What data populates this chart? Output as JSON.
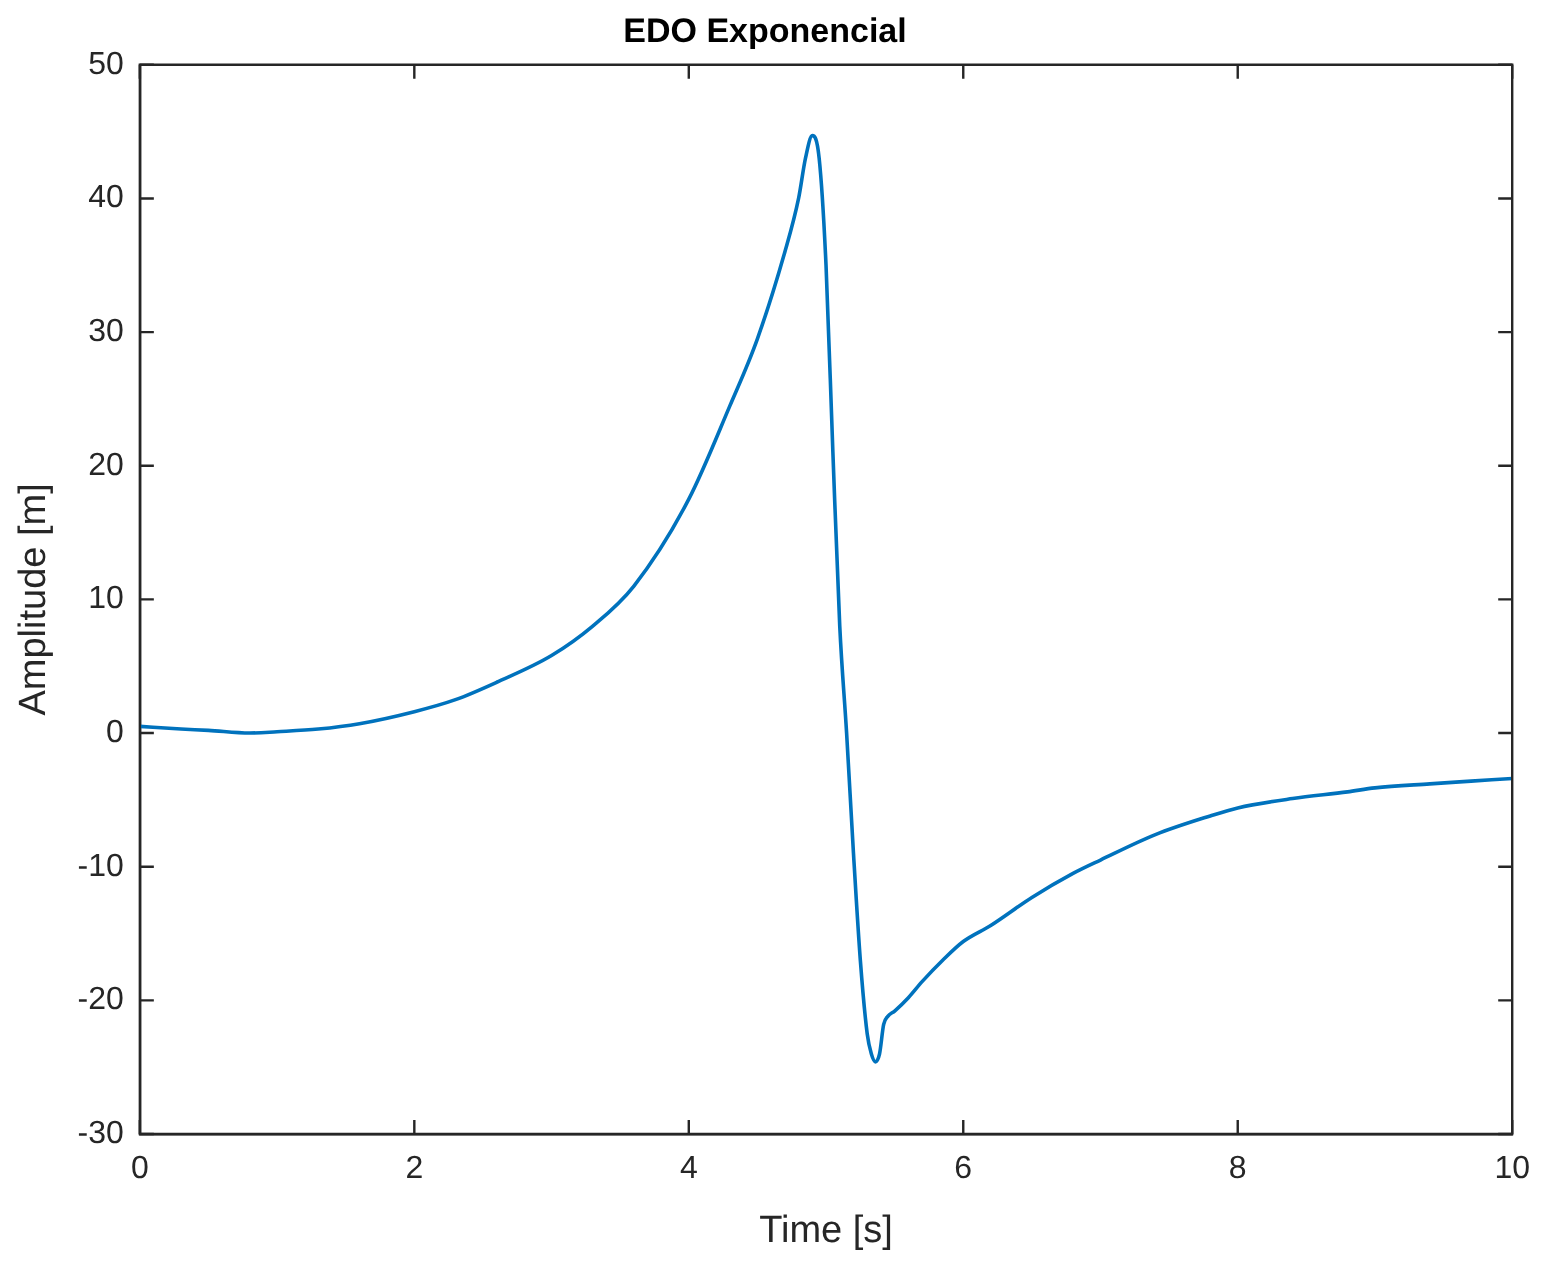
{
  "chart_data": {
    "type": "line",
    "title": "EDO Exponencial",
    "xlabel": "Time [s]",
    "ylabel": "Amplitude [m]",
    "series": [
      {
        "color": "#0072bd",
        "x": [
          0,
          0.3,
          0.5,
          0.8,
          1.0,
          1.3,
          1.6,
          2.0,
          2.3,
          2.6,
          3.0,
          3.3,
          3.6,
          4.0,
          4.3,
          4.5,
          4.7,
          4.8,
          4.85,
          4.9,
          4.95,
          5.0,
          5.05,
          5.1,
          5.15,
          5.2,
          5.25,
          5.3,
          5.33,
          5.36,
          5.39,
          5.42,
          5.45,
          5.5,
          5.6,
          5.7,
          5.85,
          6.0,
          6.2,
          6.5,
          6.8,
          7.0,
          7.4,
          7.8,
          8.0,
          8.4,
          8.8,
          9.0,
          9.4,
          9.7,
          10
        ],
        "values": [
          0.5,
          0.3,
          0.2,
          0,
          0.1,
          0.3,
          0.7,
          1.6,
          2.5,
          3.8,
          5.8,
          8,
          11,
          17.5,
          24.5,
          29.5,
          36,
          40,
          43,
          44.7,
          43,
          35,
          21,
          8,
          0,
          -9,
          -17,
          -22.5,
          -24,
          -24.6,
          -24,
          -21.8,
          -21.2,
          -20.8,
          -19.8,
          -18.6,
          -17,
          -15.6,
          -14.4,
          -12.3,
          -10.5,
          -9.5,
          -7.6,
          -6.2,
          -5.6,
          -4.9,
          -4.4,
          -4.1,
          -3.8,
          -3.6,
          -3.4
        ]
      }
    ],
    "xlim": [
      0,
      10
    ],
    "xticks": [
      0,
      2,
      4,
      6,
      8,
      10
    ],
    "ylim": [
      -30,
      50
    ],
    "yticks": [
      -30,
      -20,
      -10,
      0,
      10,
      20,
      30,
      40,
      50
    ],
    "grid": false,
    "legend": false
  }
}
